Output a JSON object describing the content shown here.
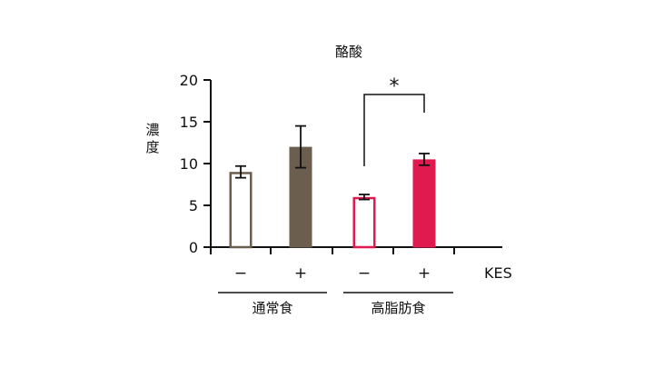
{
  "chart_data": {
    "type": "bar",
    "title": "酪酸",
    "ylabel": "濃度",
    "ylim": [
      0,
      20
    ],
    "yticks": [
      0,
      5,
      10,
      15,
      20
    ],
    "categories": [
      "−",
      "+",
      "−",
      "+"
    ],
    "treatment_label": "KES",
    "groups": [
      {
        "label": "通常食",
        "bars": [
          0,
          1
        ]
      },
      {
        "label": "高脂肪食",
        "bars": [
          2,
          3
        ]
      }
    ],
    "values": [
      9.0,
      12.0,
      6.0,
      10.5
    ],
    "errors": [
      0.7,
      2.5,
      0.3,
      0.7
    ],
    "bar_colors": [
      "#ffffff",
      "#6b5e4f",
      "#ffffff",
      "#e0194f"
    ],
    "bar_edge_colors": [
      "#6b5e4f",
      "#6b5e4f",
      "#e0194f",
      "#e0194f"
    ],
    "significance": [
      {
        "from": 2,
        "to": 3,
        "label": "*"
      }
    ],
    "grid": false,
    "legend": "none"
  }
}
